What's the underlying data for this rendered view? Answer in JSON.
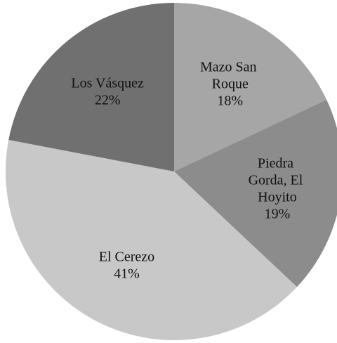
{
  "chart_data": {
    "type": "pie",
    "categories": [
      "Mazo San Roque",
      "Piedra Gorda, El Hoyito",
      "El Cerezo",
      "Los Vásquez"
    ],
    "values": [
      18,
      19,
      41,
      22
    ],
    "value_labels": [
      "18%",
      "19%",
      "41%",
      "22%"
    ],
    "colors": [
      "#a6a6a6",
      "#8c8c8c",
      "#c8c8c8",
      "#707070"
    ]
  }
}
